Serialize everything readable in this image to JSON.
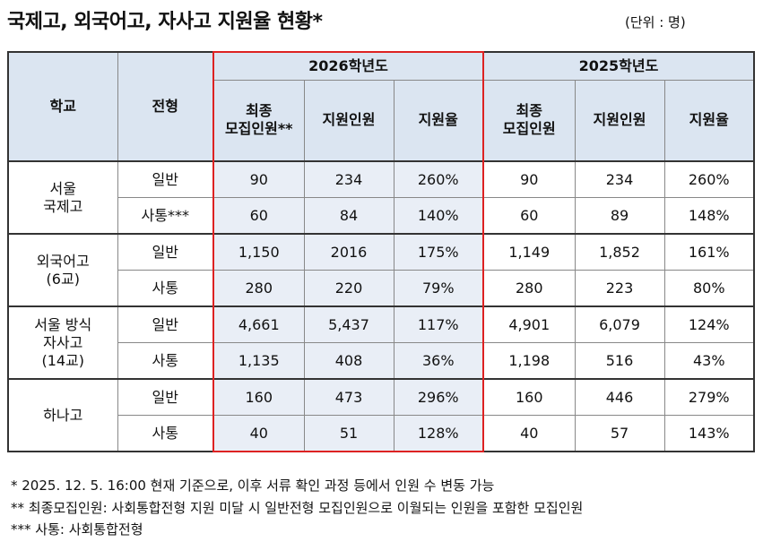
{
  "header": {
    "title": "국제고, 외국어고, 자사고 지원율 현황*",
    "unit": "(단위 : 명)"
  },
  "table": {
    "col_headers": [
      "학교",
      "전형"
    ],
    "year_headers": [
      "2026학년도",
      "2025학년도"
    ],
    "sub_headers": [
      "최종\n모집인원**",
      "지원인원",
      "지원율",
      "최종\n모집인원",
      "지원인원",
      "지원율"
    ],
    "groups": [
      {
        "school": "서울\n국제고",
        "rows": [
          {
            "track": "일반",
            "values": [
              "90",
              "234",
              "260%",
              "90",
              "234",
              "260%"
            ]
          },
          {
            "track": "사통***",
            "values": [
              "60",
              "84",
              "140%",
              "60",
              "89",
              "148%"
            ]
          }
        ]
      },
      {
        "school": "외국어고\n(6교)",
        "rows": [
          {
            "track": "일반",
            "values": [
              "1,150",
              "2016",
              "175%",
              "1,149",
              "1,852",
              "161%"
            ]
          },
          {
            "track": "사통",
            "values": [
              "280",
              "220",
              "79%",
              "280",
              "223",
              "80%"
            ]
          }
        ]
      },
      {
        "school": "서울 방식\n자사고\n(14교)",
        "rows": [
          {
            "track": "일반",
            "values": [
              "4,661",
              "5,437",
              "117%",
              "4,901",
              "6,079",
              "124%"
            ]
          },
          {
            "track": "사통",
            "values": [
              "1,135",
              "408",
              "36%",
              "1,198",
              "516",
              "43%"
            ]
          }
        ]
      },
      {
        "school": "하나고",
        "rows": [
          {
            "track": "일반",
            "values": [
              "160",
              "473",
              "296%",
              "160",
              "446",
              "279%"
            ]
          },
          {
            "track": "사통",
            "values": [
              "40",
              "51",
              "128%",
              "40",
              "57",
              "143%"
            ]
          }
        ]
      }
    ]
  },
  "notes": [
    "* 2025. 12. 5. 16:00 현재 기준으로, 이후 서류 확인 과정 등에서 인원 수 변동 가능",
    "** 최종모집인원: 사회통합전형 지원 미달 시 일반전형 모집인원으로 이월되는 인원을 포함한 모집인원",
    "*** 사통: 사회통합전형"
  ]
}
